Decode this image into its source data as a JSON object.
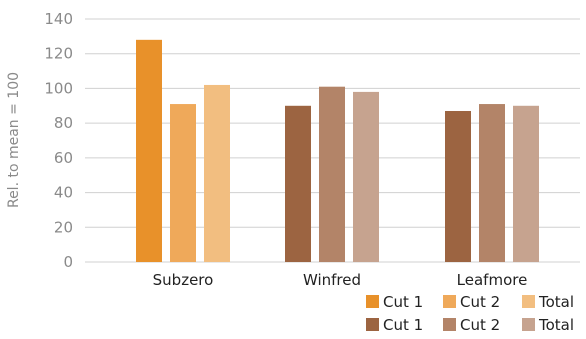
{
  "chart_data": {
    "type": "bar",
    "ylabel": "Rel. to mean = 100",
    "ylim": [
      0,
      140
    ],
    "yticks": [
      0,
      20,
      40,
      60,
      80,
      100,
      120,
      140
    ],
    "grid": true,
    "legend_position": "bottom-right",
    "categories": [
      "Subzero",
      "Winfred",
      "Leafmore"
    ],
    "groups": [
      {
        "category": "Subzero",
        "bars": [
          {
            "label": "Cut 1",
            "value": 128,
            "color": "#E8912A"
          },
          {
            "label": "Cut 2",
            "value": 91,
            "color": "#EFA95A"
          },
          {
            "label": "Total",
            "value": 102,
            "color": "#F2BE80"
          }
        ]
      },
      {
        "category": "Winfred",
        "bars": [
          {
            "label": "Cut 1",
            "value": 90,
            "color": "#9C6441"
          },
          {
            "label": "Cut 2",
            "value": 101,
            "color": "#B38468"
          },
          {
            "label": "Total",
            "value": 98,
            "color": "#C6A38F"
          }
        ]
      },
      {
        "category": "Leafmore",
        "bars": [
          {
            "label": "Cut 1",
            "value": 87,
            "color": "#9C6441"
          },
          {
            "label": "Cut 2",
            "value": 91,
            "color": "#B38468"
          },
          {
            "label": "Total",
            "value": 90,
            "color": "#C6A38F"
          }
        ]
      }
    ],
    "legend": [
      [
        {
          "label": "Cut 1",
          "color": "#E8912A"
        },
        {
          "label": "Cut 2",
          "color": "#EFA95A"
        },
        {
          "label": "Total",
          "color": "#F2BE80"
        }
      ],
      [
        {
          "label": "Cut 1",
          "color": "#9C6441"
        },
        {
          "label": "Cut 2",
          "color": "#B38468"
        },
        {
          "label": "Total",
          "color": "#C6A38F"
        }
      ]
    ]
  }
}
